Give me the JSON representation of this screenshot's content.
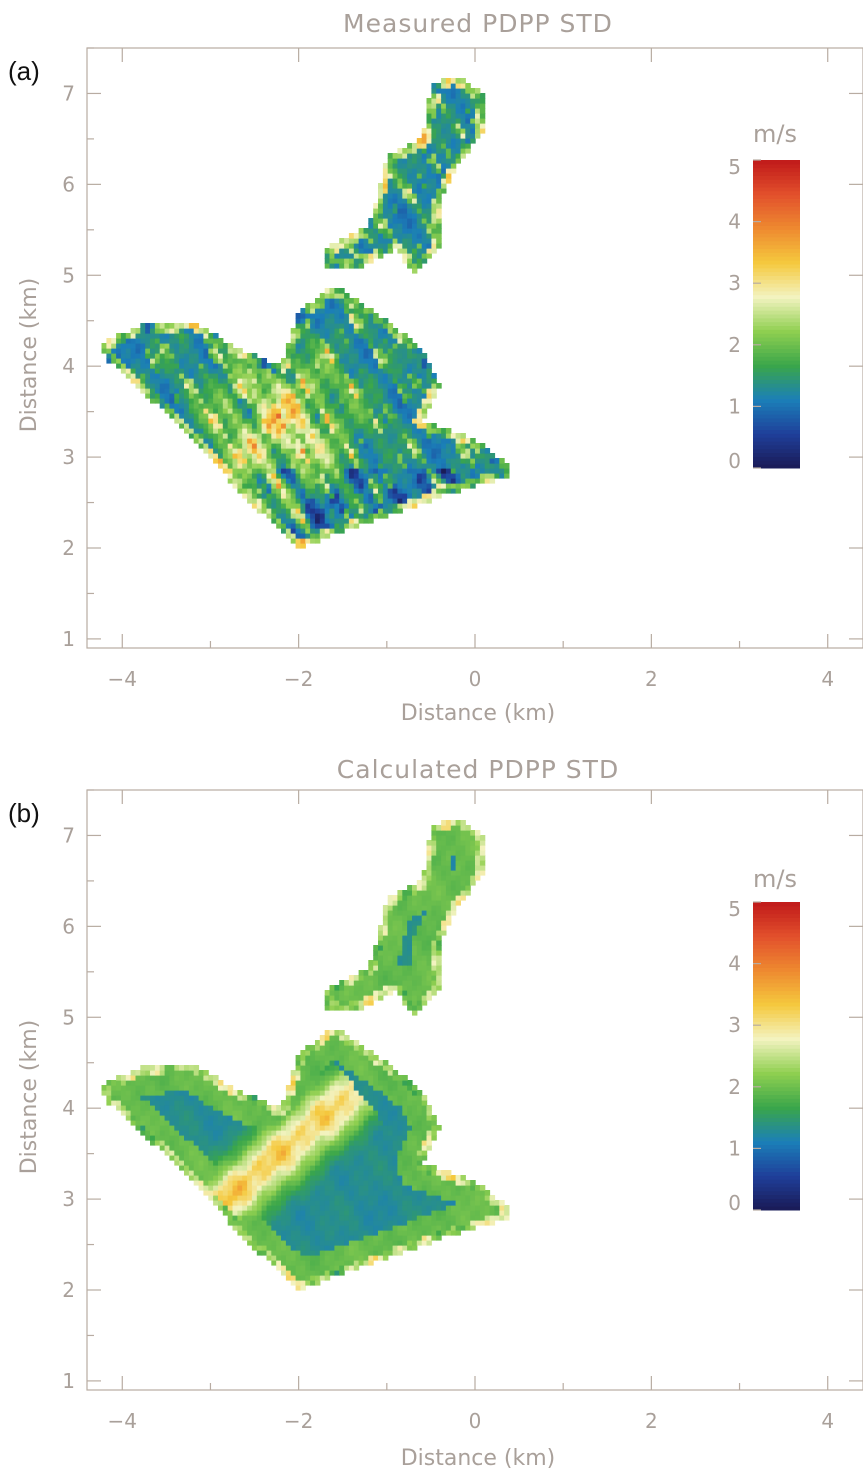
{
  "chart_data": [
    {
      "type": "heatmap",
      "panel_label": "(a)",
      "title": "Measured PDPP STD",
      "xlabel": "Distance (km)",
      "ylabel": "Distance (km)",
      "xlim": [
        -4.4,
        4.4
      ],
      "ylim": [
        0.9,
        7.5
      ],
      "xticks": [
        -4,
        -2,
        0,
        2,
        4
      ],
      "yticks": [
        1,
        2,
        3,
        4,
        5,
        6,
        7
      ],
      "colorbar": {
        "unit": "m/s",
        "range": [
          0,
          5
        ],
        "ticks": [
          0,
          1,
          2,
          3,
          4,
          5
        ],
        "colors": [
          "#1a1a55",
          "#1f3f9a",
          "#1b7fb8",
          "#3aa64a",
          "#8fcf50",
          "#f3f3c0",
          "#f5c93e",
          "#ee8a30",
          "#e2502c",
          "#c01a1a"
        ]
      },
      "regions": [
        {
          "name": "main",
          "polygon": [
            [
              -4.25,
              4.25
            ],
            [
              -3.8,
              4.45
            ],
            [
              -3.2,
              4.5
            ],
            [
              -2.7,
              4.2
            ],
            [
              -2.2,
              4.0
            ],
            [
              -2.0,
              4.6
            ],
            [
              -1.6,
              4.9
            ],
            [
              -1.0,
              4.5
            ],
            [
              -0.6,
              4.2
            ],
            [
              -0.4,
              3.8
            ],
            [
              -0.6,
              3.4
            ],
            [
              0.0,
              3.2
            ],
            [
              0.4,
              2.9
            ],
            [
              0.4,
              2.8
            ],
            [
              -0.3,
              2.6
            ],
            [
              -1.0,
              2.35
            ],
            [
              -1.6,
              2.15
            ],
            [
              -2.0,
              2.0
            ],
            [
              -2.6,
              2.55
            ],
            [
              -3.3,
              3.3
            ],
            [
              -4.2,
              4.1
            ]
          ]
        },
        {
          "name": "north",
          "polygon": [
            [
              -1.7,
              5.3
            ],
            [
              -1.2,
              5.55
            ],
            [
              -1.0,
              6.3
            ],
            [
              -0.6,
              6.5
            ],
            [
              -0.5,
              7.1
            ],
            [
              -0.2,
              7.2
            ],
            [
              0.1,
              7.0
            ],
            [
              0.1,
              6.6
            ],
            [
              -0.2,
              6.2
            ],
            [
              -0.4,
              5.8
            ],
            [
              -0.4,
              5.3
            ],
            [
              -0.7,
              5.0
            ],
            [
              -0.9,
              5.3
            ],
            [
              -1.3,
              5.1
            ],
            [
              -1.7,
              5.1
            ]
          ]
        }
      ],
      "field_note": "Mostly green (~1.2 m/s) with scattered orange/red patches (~3-4 m/s) in the central-west area and blue spots (~0.5 m/s) along the southern edge."
    },
    {
      "type": "heatmap",
      "panel_label": "(b)",
      "title": "Calculated PDPP STD",
      "xlabel": "Distance (km)",
      "ylabel": "Distance (km)",
      "xlim": [
        -4.4,
        4.4
      ],
      "ylim": [
        0.9,
        7.5
      ],
      "xticks": [
        -4,
        -2,
        0,
        2,
        4
      ],
      "yticks": [
        1,
        2,
        3,
        4,
        5,
        6,
        7
      ],
      "colorbar": {
        "unit": "m/s",
        "range": [
          0,
          5
        ],
        "ticks": [
          0,
          1,
          2,
          3,
          4,
          5
        ],
        "colors": [
          "#1a1a55",
          "#1f3f9a",
          "#1b7fb8",
          "#3aa64a",
          "#8fcf50",
          "#f3f3c0",
          "#f5c93e",
          "#ee8a30",
          "#e2502c",
          "#c01a1a"
        ]
      },
      "regions": [
        {
          "name": "main",
          "polygon": [
            [
              -4.25,
              4.25
            ],
            [
              -3.8,
              4.45
            ],
            [
              -3.2,
              4.5
            ],
            [
              -2.7,
              4.2
            ],
            [
              -2.2,
              4.0
            ],
            [
              -2.0,
              4.6
            ],
            [
              -1.6,
              4.9
            ],
            [
              -1.0,
              4.5
            ],
            [
              -0.6,
              4.2
            ],
            [
              -0.4,
              3.8
            ],
            [
              -0.6,
              3.4
            ],
            [
              0.0,
              3.2
            ],
            [
              0.4,
              2.9
            ],
            [
              0.4,
              2.8
            ],
            [
              -0.3,
              2.6
            ],
            [
              -1.0,
              2.35
            ],
            [
              -1.6,
              2.15
            ],
            [
              -2.0,
              2.0
            ],
            [
              -2.6,
              2.55
            ],
            [
              -3.3,
              3.3
            ],
            [
              -4.2,
              4.1
            ]
          ]
        },
        {
          "name": "north",
          "polygon": [
            [
              -1.7,
              5.3
            ],
            [
              -1.2,
              5.55
            ],
            [
              -1.0,
              6.3
            ],
            [
              -0.6,
              6.5
            ],
            [
              -0.5,
              7.1
            ],
            [
              -0.2,
              7.2
            ],
            [
              0.1,
              7.0
            ],
            [
              0.1,
              6.6
            ],
            [
              -0.2,
              6.2
            ],
            [
              -0.4,
              5.8
            ],
            [
              -0.4,
              5.3
            ],
            [
              -0.7,
              5.0
            ],
            [
              -0.9,
              5.3
            ],
            [
              -1.3,
              5.1
            ],
            [
              -1.7,
              5.1
            ]
          ]
        }
      ],
      "field_note": "Smooth green (~1.3 m/s) field with a pale yellow fringe (~2 m/s) along the northern edges and an orange-red band (~3.5 m/s) running from about (-2.8, 3.0) to (-1.5, 4.0)."
    }
  ]
}
